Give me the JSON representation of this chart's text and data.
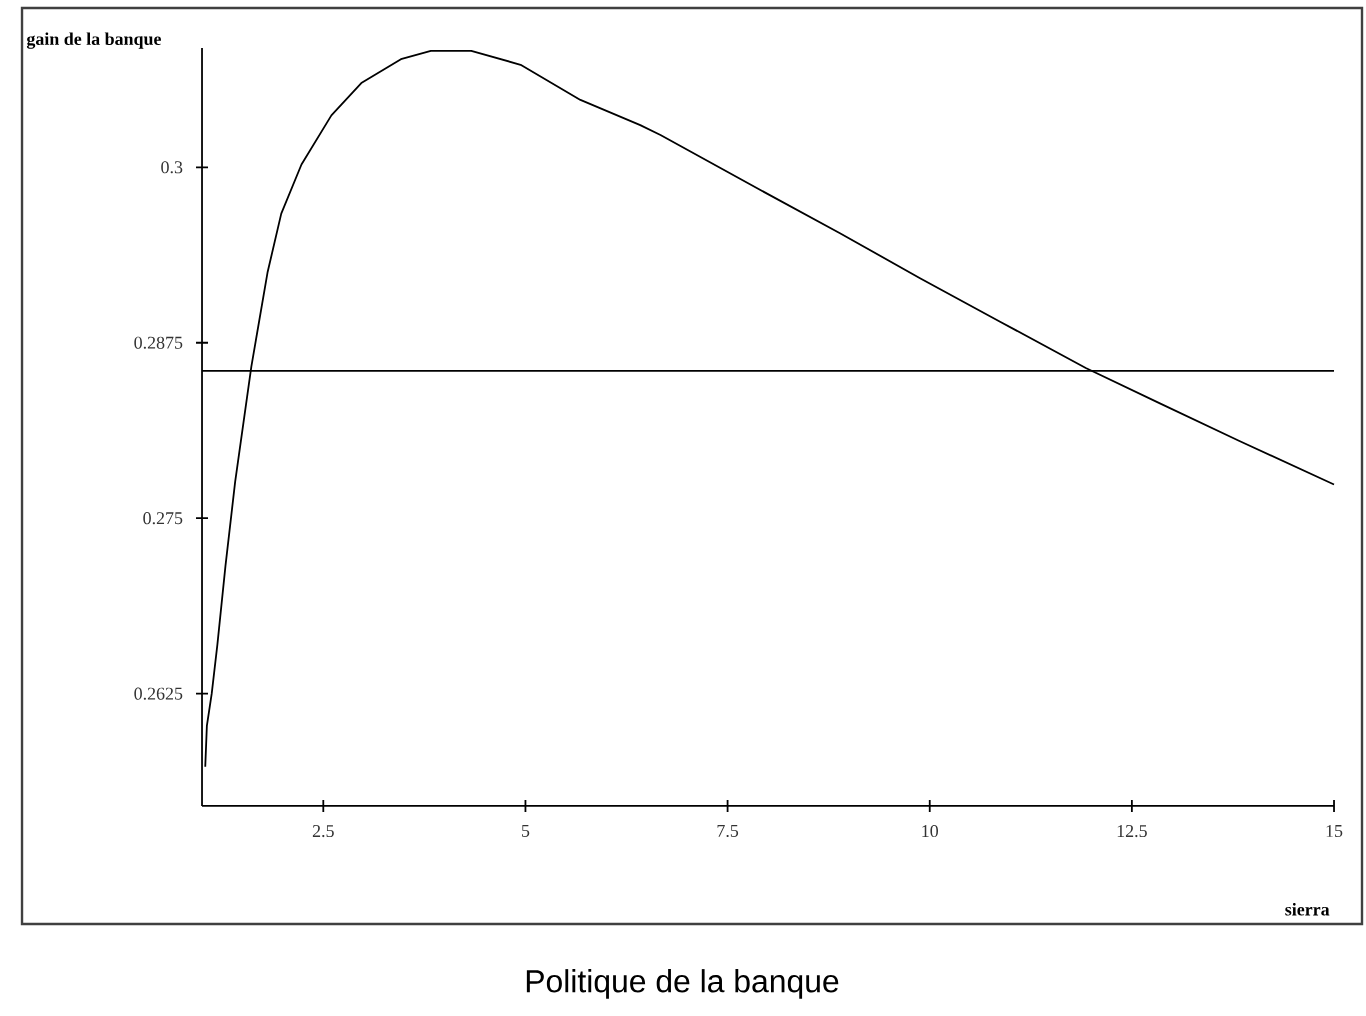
{
  "chart_data": {
    "type": "line",
    "title": "Politique de la banque",
    "xlabel": "sierra",
    "ylabel": "gain de la banque",
    "xlim": [
      1,
      15
    ],
    "ylim": [
      0.2545,
      0.3085
    ],
    "xticks": [
      2.5,
      5,
      7.5,
      10,
      12.5,
      15
    ],
    "yticks": [
      0.2625,
      0.275,
      0.2875,
      0.3
    ],
    "x": [
      1.04,
      1.06,
      1.12,
      1.19,
      1.29,
      1.41,
      1.61,
      1.81,
      1.98,
      2.23,
      2.6,
      2.97,
      3.46,
      3.83,
      4.33,
      4.94,
      5.68,
      6.42,
      6.67,
      7.9,
      8.89,
      9.88,
      10.87,
      11.93,
      12.84,
      13.83,
      15
    ],
    "series": [
      {
        "color": "#000000",
        "values": [
          0.2573,
          0.2602,
          0.2625,
          0.266,
          0.2716,
          0.2776,
          0.2858,
          0.2925,
          0.2967,
          0.3002,
          0.3037,
          0.306,
          0.3077,
          0.3083,
          0.3083,
          0.3073,
          0.3048,
          0.303,
          0.3023,
          0.2984,
          0.2953,
          0.2921,
          0.289,
          0.2857,
          0.2832,
          0.2805,
          0.2774
        ]
      }
    ],
    "ref_lines": [
      {
        "axis": "y",
        "value": 0.2855,
        "color": "#000000"
      }
    ],
    "grid": false,
    "marker": "none",
    "line_style": "solid"
  }
}
